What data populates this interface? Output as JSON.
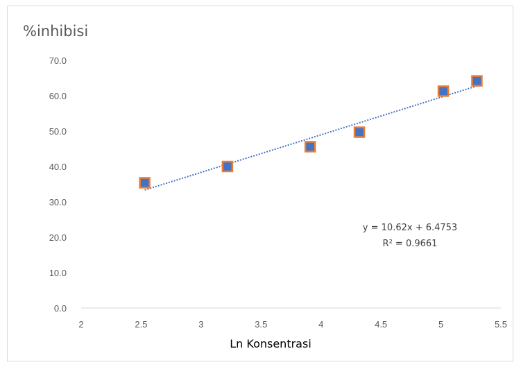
{
  "chart_data": {
    "type": "scatter",
    "title": "%inhibisi",
    "xlabel": "Ln Konsentrasi",
    "ylabel": "",
    "xlim": [
      2,
      5.5
    ],
    "ylim": [
      0,
      70
    ],
    "xticks": [
      2,
      2.5,
      3,
      3.5,
      4,
      4.5,
      5,
      5.5
    ],
    "xtick_labels": [
      "2",
      "2.5",
      "3",
      "3.5",
      "4",
      "4.5",
      "5",
      "5.5"
    ],
    "yticks": [
      0,
      10,
      20,
      30,
      40,
      50,
      60,
      70
    ],
    "ytick_labels": [
      "0.0",
      "10.0",
      "20.0",
      "30.0",
      "40.0",
      "50.0",
      "60.0",
      "70.0"
    ],
    "grid": false,
    "series": [
      {
        "marker": "square",
        "color": "#4472C4",
        "edge_color": "#ED7D31",
        "points": [
          {
            "x": 2.53,
            "y": 35.4
          },
          {
            "x": 3.22,
            "y": 40.0
          },
          {
            "x": 3.91,
            "y": 45.6
          },
          {
            "x": 4.32,
            "y": 49.7
          },
          {
            "x": 5.02,
            "y": 61.3
          },
          {
            "x": 5.3,
            "y": 64.2
          }
        ]
      }
    ],
    "trendline": {
      "type": "linear",
      "slope": 10.62,
      "intercept": 6.4753,
      "x_range": [
        2.53,
        5.3
      ],
      "color": "#4472C4",
      "style": "dotted",
      "equation_label": "y = 10.62x + 6.4753",
      "r2_label": "R² = 0.9661"
    }
  }
}
